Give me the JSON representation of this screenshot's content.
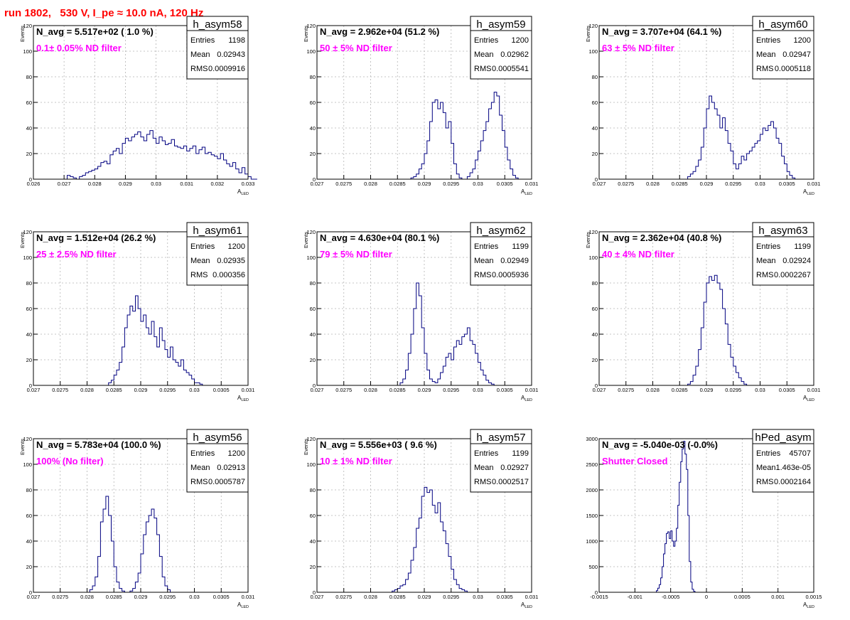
{
  "page_title": "run 1802,   530 V, I_pe ≈ 10.0 nA, 120 Hz",
  "colors": {
    "histogram_line": "#000080",
    "label_text": "#ff00ff",
    "title_text": "#ff0000",
    "grid": "#b4b4b4"
  },
  "chart_data": [
    {
      "type": "bar",
      "name": "h_asym58",
      "navg": "N_avg = 5.517e+02 ( 1.0 %)",
      "filter": "0.1± 0.05% ND filter",
      "ylabel": "Events",
      "xlabel": "A",
      "xlabel_sub": "LED",
      "xlim": [
        0.026,
        0.033
      ],
      "ylim": [
        0,
        120
      ],
      "x_ticks": [
        "0.026",
        "0.027",
        "0.028",
        "0.029",
        "0.03",
        "0.031",
        "0.032",
        "0.033"
      ],
      "y_ticks": [
        "0",
        "20",
        "40",
        "60",
        "80",
        "100",
        "120"
      ],
      "stats": [
        {
          "label": "Entries",
          "value": "1198"
        },
        {
          "label": "Mean",
          "value": "0.02943"
        },
        {
          "label": "RMS",
          "value": "0.0009916"
        }
      ],
      "bin_width": 0.0001,
      "bins_start": 0.0271,
      "values": [
        3,
        2,
        1,
        0,
        2,
        3,
        5,
        6,
        7,
        8,
        10,
        13,
        14,
        12,
        19,
        22,
        24,
        20,
        28,
        32,
        30,
        33,
        35,
        37,
        33,
        30,
        35,
        38,
        32,
        28,
        33,
        30,
        27,
        28,
        31,
        26,
        25,
        24,
        26,
        22,
        24,
        26,
        20,
        23,
        25,
        20,
        21,
        19,
        18,
        16,
        20,
        15,
        12,
        10,
        13,
        8,
        5,
        9,
        4,
        2,
        0,
        0
      ]
    },
    {
      "type": "bar",
      "name": "h_asym59",
      "navg": "N_avg = 2.962e+04 (51.2 %)",
      "filter": " 50 ± 5% ND filter",
      "ylabel": "Events",
      "xlabel": "A",
      "xlabel_sub": "LED",
      "xlim": [
        0.027,
        0.031
      ],
      "ylim": [
        0,
        120
      ],
      "x_ticks": [
        "0.027",
        "0.0275",
        "0.028",
        "0.0285",
        "0.029",
        "0.0295",
        "0.03",
        "0.0305",
        "0.031"
      ],
      "y_ticks": [
        "0",
        "20",
        "40",
        "60",
        "80",
        "100",
        "120"
      ],
      "stats": [
        {
          "label": "Entries",
          "value": "1200"
        },
        {
          "label": "Mean",
          "value": "0.02962"
        },
        {
          "label": "RMS",
          "value": "0.0005541"
        }
      ],
      "bin_width": 5e-05,
      "bins_start": 0.02875,
      "values": [
        1,
        2,
        4,
        8,
        12,
        20,
        30,
        45,
        60,
        62,
        55,
        60,
        52,
        40,
        45,
        28,
        12,
        4,
        1,
        0,
        0,
        2,
        5,
        8,
        15,
        22,
        30,
        38,
        45,
        55,
        60,
        68,
        65,
        50,
        38,
        25,
        15,
        8,
        3,
        1
      ]
    },
    {
      "type": "bar",
      "name": "h_asym60",
      "navg": "N_avg = 3.707e+04 (64.1 %)",
      "filter": " 63 ± 5% ND filter",
      "ylabel": "Events",
      "xlabel": "A",
      "xlabel_sub": "LED",
      "xlim": [
        0.027,
        0.031
      ],
      "ylim": [
        0,
        120
      ],
      "x_ticks": [
        "0.027",
        "0.0275",
        "0.028",
        "0.0285",
        "0.029",
        "0.0295",
        "0.03",
        "0.0305",
        "0.031"
      ],
      "y_ticks": [
        "0",
        "20",
        "40",
        "60",
        "80",
        "100",
        "120"
      ],
      "stats": [
        {
          "label": "Entries",
          "value": "1200"
        },
        {
          "label": "Mean",
          "value": "0.02947"
        },
        {
          "label": "RMS",
          "value": "0.0005118"
        }
      ],
      "bin_width": 5e-05,
      "bins_start": 0.02865,
      "values": [
        2,
        4,
        6,
        10,
        15,
        25,
        40,
        55,
        65,
        60,
        55,
        50,
        40,
        48,
        38,
        28,
        22,
        12,
        8,
        12,
        18,
        15,
        20,
        22,
        25,
        28,
        30,
        35,
        40,
        38,
        42,
        45,
        40,
        32,
        28,
        18,
        12,
        6,
        3,
        1
      ]
    },
    {
      "type": "bar",
      "name": "h_asym61",
      "navg": "N_avg = 1.512e+04 (26.2 %)",
      "filter": " 25 ± 2.5% ND filter",
      "ylabel": "Events",
      "xlabel": "A",
      "xlabel_sub": "LED",
      "xlim": [
        0.027,
        0.031
      ],
      "ylim": [
        0,
        120
      ],
      "x_ticks": [
        "0.027",
        "0.0275",
        "0.028",
        "0.0285",
        "0.029",
        "0.0295",
        "0.03",
        "0.0305",
        "0.031"
      ],
      "y_ticks": [
        "0",
        "20",
        "40",
        "60",
        "80",
        "100",
        "120"
      ],
      "stats": [
        {
          "label": "Entries",
          "value": "1200"
        },
        {
          "label": "Mean",
          "value": "0.02935"
        },
        {
          "label": "RMS",
          "value": "0.000356"
        }
      ],
      "bin_width": 5e-05,
      "bins_start": 0.0284,
      "values": [
        2,
        4,
        8,
        12,
        18,
        30,
        45,
        55,
        62,
        58,
        70,
        60,
        50,
        55,
        45,
        40,
        50,
        38,
        30,
        45,
        35,
        28,
        22,
        30,
        20,
        18,
        15,
        20,
        12,
        10,
        8,
        5,
        2,
        2,
        1,
        0
      ]
    },
    {
      "type": "bar",
      "name": "h_asym62",
      "navg": "N_avg = 4.630e+04 (80.1 %)",
      "filter": " 79 ± 5% ND filter",
      "ylabel": "Events",
      "xlabel": "A",
      "xlabel_sub": "LED",
      "xlim": [
        0.027,
        0.031
      ],
      "ylim": [
        0,
        120
      ],
      "x_ticks": [
        "0.027",
        "0.0275",
        "0.028",
        "0.0285",
        "0.029",
        "0.0295",
        "0.03",
        "0.0305",
        "0.031"
      ],
      "y_ticks": [
        "0",
        "20",
        "40",
        "60",
        "80",
        "100",
        "120"
      ],
      "stats": [
        {
          "label": "Entries",
          "value": "1199"
        },
        {
          "label": "Mean",
          "value": "0.02949"
        },
        {
          "label": "RMS",
          "value": "0.0005936"
        }
      ],
      "bin_width": 5e-05,
      "bins_start": 0.02855,
      "values": [
        2,
        5,
        12,
        25,
        40,
        60,
        80,
        70,
        45,
        25,
        12,
        5,
        3,
        2,
        5,
        10,
        15,
        22,
        25,
        20,
        30,
        35,
        32,
        38,
        40,
        45,
        35,
        32,
        25,
        18,
        12,
        8,
        4,
        2,
        1
      ]
    },
    {
      "type": "bar",
      "name": "h_asym63",
      "navg": "N_avg = 2.362e+04 (40.8 %)",
      "filter": " 40 ± 4% ND filter",
      "ylabel": "Events",
      "xlabel": "A",
      "xlabel_sub": "LED",
      "xlim": [
        0.027,
        0.031
      ],
      "ylim": [
        0,
        120
      ],
      "x_ticks": [
        "0.027",
        "0.0275",
        "0.028",
        "0.0285",
        "0.029",
        "0.0295",
        "0.03",
        "0.0305",
        "0.031"
      ],
      "y_ticks": [
        "0",
        "20",
        "40",
        "60",
        "80",
        "100",
        "120"
      ],
      "stats": [
        {
          "label": "Entries",
          "value": "1199"
        },
        {
          "label": "Mean",
          "value": "0.02924"
        },
        {
          "label": "RMS",
          "value": "0.0002267"
        }
      ],
      "bin_width": 5e-05,
      "bins_start": 0.02865,
      "values": [
        1,
        3,
        8,
        15,
        28,
        45,
        65,
        80,
        85,
        82,
        86,
        80,
        75,
        60,
        48,
        32,
        22,
        15,
        10,
        6,
        3,
        1
      ]
    },
    {
      "type": "bar",
      "name": "h_asym56",
      "navg": "N_avg = 5.783e+04 (100.0 %)",
      "filter": " 100% (No filter)",
      "ylabel": "Events",
      "xlabel": "A",
      "xlabel_sub": "LED",
      "xlim": [
        0.027,
        0.031
      ],
      "ylim": [
        0,
        120
      ],
      "x_ticks": [
        "0.027",
        "0.0275",
        "0.028",
        "0.0285",
        "0.029",
        "0.0295",
        "0.03",
        "0.0305",
        "0.031"
      ],
      "y_ticks": [
        "0",
        "20",
        "40",
        "60",
        "80",
        "100",
        "120"
      ],
      "stats": [
        {
          "label": "Entries",
          "value": "1200"
        },
        {
          "label": "Mean",
          "value": "0.02913"
        },
        {
          "label": "RMS",
          "value": "0.0005787"
        }
      ],
      "bin_width": 5e-05,
      "bins_start": 0.02805,
      "values": [
        2,
        5,
        12,
        28,
        55,
        65,
        75,
        60,
        40,
        20,
        8,
        3,
        1,
        0,
        0,
        1,
        3,
        8,
        15,
        30,
        45,
        55,
        60,
        65,
        58,
        45,
        28,
        12,
        5,
        2
      ]
    },
    {
      "type": "bar",
      "name": "h_asym57",
      "navg": "N_avg = 5.556e+03 ( 9.6 %)",
      "filter": " 10 ± 1% ND filter",
      "ylabel": "Events",
      "xlabel": "A",
      "xlabel_sub": "LED",
      "xlim": [
        0.027,
        0.031
      ],
      "ylim": [
        0,
        120
      ],
      "x_ticks": [
        "0.027",
        "0.0275",
        "0.028",
        "0.0285",
        "0.029",
        "0.0295",
        "0.03",
        "0.0305",
        "0.031"
      ],
      "y_ticks": [
        "0",
        "20",
        "40",
        "60",
        "80",
        "100",
        "120"
      ],
      "stats": [
        {
          "label": "Entries",
          "value": "1199"
        },
        {
          "label": "Mean",
          "value": "0.02927"
        },
        {
          "label": "RMS",
          "value": "0.0002517"
        }
      ],
      "bin_width": 5e-05,
      "bins_start": 0.0284,
      "values": [
        1,
        2,
        3,
        5,
        6,
        10,
        15,
        25,
        35,
        50,
        58,
        75,
        82,
        78,
        80,
        68,
        62,
        70,
        55,
        48,
        38,
        28,
        18,
        10,
        6,
        3,
        2,
        1
      ]
    },
    {
      "type": "bar",
      "name": "hPed_asym",
      "navg": "N_avg = -5.040e-03 (-0.0%)",
      "filter": " Shutter Closed",
      "ylabel": "",
      "xlabel": "A",
      "xlabel_sub": "LED",
      "xlim": [
        -0.0015,
        0.0015
      ],
      "ylim": [
        0,
        3000
      ],
      "x_ticks": [
        "-0.0015",
        "-0.001",
        "-0.0005",
        "0",
        "0.0005",
        "0.001",
        "0.0015"
      ],
      "y_ticks": [
        "0",
        "500",
        "1000",
        "1500",
        "2000",
        "2500",
        "3000"
      ],
      "stats": [
        {
          "label": "Entries",
          "value": "45707"
        },
        {
          "label": "Mean",
          "value": "1.463e-05"
        },
        {
          "label": "RMS",
          "value": "0.0002164"
        }
      ],
      "bin_width": 2e-05,
      "bins_start": -0.0007,
      "values": [
        30,
        80,
        150,
        280,
        500,
        750,
        950,
        1150,
        1180,
        1050,
        1200,
        1000,
        900,
        1000,
        1250,
        1700,
        2150,
        2550,
        2800,
        2950,
        2700,
        2400,
        1500,
        600,
        200,
        60,
        20
      ]
    }
  ]
}
